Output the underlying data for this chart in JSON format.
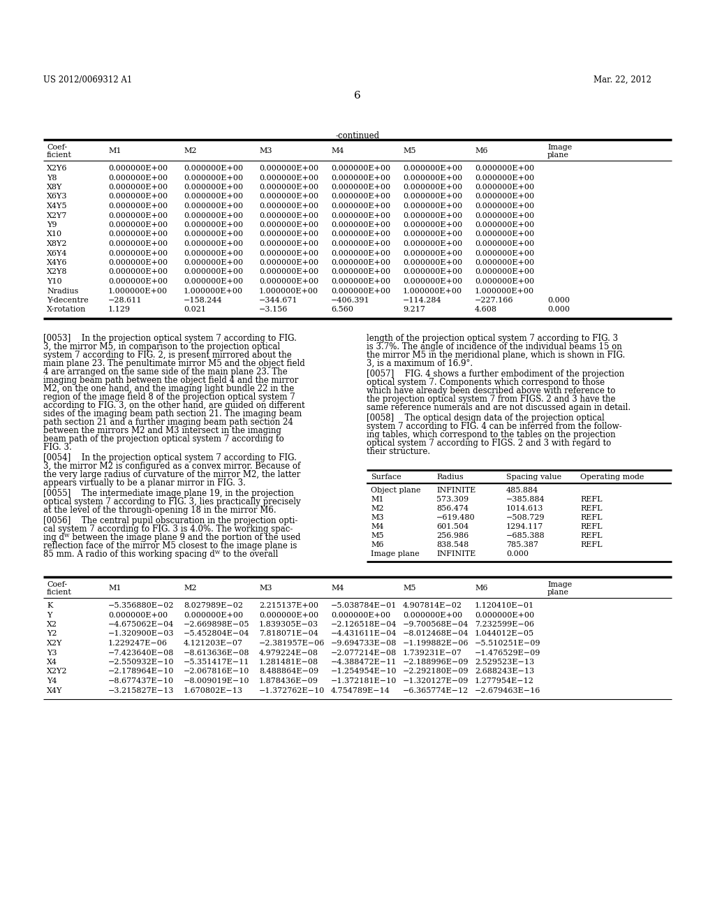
{
  "page_header_left": "US 2012/0069312 A1",
  "page_header_right": "Mar. 22, 2012",
  "page_number": "6",
  "continued_label": "-continued",
  "table1_rows": [
    [
      "X2Y6",
      "0.000000E+00",
      "0.000000E+00",
      "0.000000E+00",
      "0.000000E+00",
      "0.000000E+00",
      "0.000000E+00",
      ""
    ],
    [
      "Y8",
      "0.000000E+00",
      "0.000000E+00",
      "0.000000E+00",
      "0.000000E+00",
      "0.000000E+00",
      "0.000000E+00",
      ""
    ],
    [
      "X8Y",
      "0.000000E+00",
      "0.000000E+00",
      "0.000000E+00",
      "0.000000E+00",
      "0.000000E+00",
      "0.000000E+00",
      ""
    ],
    [
      "X6Y3",
      "0.000000E+00",
      "0.000000E+00",
      "0.000000E+00",
      "0.000000E+00",
      "0.000000E+00",
      "0.000000E+00",
      ""
    ],
    [
      "X4Y5",
      "0.000000E+00",
      "0.000000E+00",
      "0.000000E+00",
      "0.000000E+00",
      "0.000000E+00",
      "0.000000E+00",
      ""
    ],
    [
      "X2Y7",
      "0.000000E+00",
      "0.000000E+00",
      "0.000000E+00",
      "0.000000E+00",
      "0.000000E+00",
      "0.000000E+00",
      ""
    ],
    [
      "Y9",
      "0.000000E+00",
      "0.000000E+00",
      "0.000000E+00",
      "0.000000E+00",
      "0.000000E+00",
      "0.000000E+00",
      ""
    ],
    [
      "X10",
      "0.000000E+00",
      "0.000000E+00",
      "0.000000E+00",
      "0.000000E+00",
      "0.000000E+00",
      "0.000000E+00",
      ""
    ],
    [
      "X8Y2",
      "0.000000E+00",
      "0.000000E+00",
      "0.000000E+00",
      "0.000000E+00",
      "0.000000E+00",
      "0.000000E+00",
      ""
    ],
    [
      "X6Y4",
      "0.000000E+00",
      "0.000000E+00",
      "0.000000E+00",
      "0.000000E+00",
      "0.000000E+00",
      "0.000000E+00",
      ""
    ],
    [
      "X4Y6",
      "0.000000E+00",
      "0.000000E+00",
      "0.000000E+00",
      "0.000000E+00",
      "0.000000E+00",
      "0.000000E+00",
      ""
    ],
    [
      "X2Y8",
      "0.000000E+00",
      "0.000000E+00",
      "0.000000E+00",
      "0.000000E+00",
      "0.000000E+00",
      "0.000000E+00",
      ""
    ],
    [
      "Y10",
      "0.000000E+00",
      "0.000000E+00",
      "0.000000E+00",
      "0.000000E+00",
      "0.000000E+00",
      "0.000000E+00",
      ""
    ],
    [
      "Nradius",
      "1.000000E+00",
      "1.000000E+00",
      "1.000000E+00",
      "0.000000E+00",
      "1.000000E+00",
      "1.000000E+00",
      ""
    ],
    [
      "Y-decentre",
      "−28.611",
      "−158.244",
      "−344.671",
      "−406.391",
      "−114.284",
      "−227.166",
      "0.000"
    ],
    [
      "X-rotation",
      "1.129",
      "0.021",
      "−3.156",
      "6.560",
      "9.217",
      "4.608",
      "0.000"
    ]
  ],
  "table2_headers": [
    "Surface",
    "Radius",
    "Spacing value",
    "Operating mode"
  ],
  "table2_rows": [
    [
      "Object plane",
      "INFINITE",
      "485.884",
      ""
    ],
    [
      "M1",
      "573.309",
      "−385.884",
      "REFL"
    ],
    [
      "M2",
      "856.474",
      "1014.613",
      "REFL"
    ],
    [
      "M3",
      "−619.480",
      "−508.729",
      "REFL"
    ],
    [
      "M4",
      "601.504",
      "1294.117",
      "REFL"
    ],
    [
      "M5",
      "256.986",
      "−685.388",
      "REFL"
    ],
    [
      "M6",
      "838.548",
      "785.387",
      "REFL"
    ],
    [
      "Image plane",
      "INFINITE",
      "0.000",
      ""
    ]
  ],
  "table3_rows": [
    [
      "K",
      "−5.356880E−02",
      "8.027989E−02",
      "2.215137E+00",
      "−5.038784E−01",
      "4.907814E−02",
      "1.120410E−01"
    ],
    [
      "Y",
      "0.000000E+00",
      "0.000000E+00",
      "0.000000E+00",
      "0.000000E+00",
      "0.000000E+00",
      "0.000000E+00"
    ],
    [
      "X2",
      "−4.675062E−04",
      "−2.669898E−05",
      "1.839305E−03",
      "−2.126518E−04",
      "−9.700568E−04",
      "7.232599E−06"
    ],
    [
      "Y2",
      "−1.320900E−03",
      "−5.452804E−04",
      "7.818071E−04",
      "−4.431611E−04",
      "−8.012468E−04",
      "1.044012E−05"
    ],
    [
      "X2Y",
      "1.229247E−06",
      "4.121203E−07",
      "−2.381957E−06",
      "−9.694733E−08",
      "−1.199882E−06",
      "−5.510251E−09"
    ],
    [
      "Y3",
      "−7.423640E−08",
      "−8.613636E−08",
      "4.979224E−08",
      "−2.077214E−08",
      "1.739231E−07",
      "−1.476529E−09"
    ],
    [
      "X4",
      "−2.550932E−10",
      "−5.351417E−11",
      "1.281481E−08",
      "−4.388472E−11",
      "−2.188996E−09",
      "2.529523E−13"
    ],
    [
      "X2Y2",
      "−2.178964E−10",
      "−2.067816E−10",
      "8.488864E−09",
      "−1.254954E−10",
      "−2.292180E−09",
      "2.688243E−13"
    ],
    [
      "Y4",
      "−8.677437E−10",
      "−8.009019E−10",
      "1.878436E−09",
      "−1.372181E−10",
      "−1.320127E−09",
      "1.277954E−12"
    ],
    [
      "X4Y",
      "−3.215827E−13",
      "1.670802E−13",
      "−1.372762E−10",
      "4.754789E−14",
      "−6.365774E−12",
      "−2.679463E−16"
    ]
  ],
  "col1_paras": [
    "[0053]  In the projection optical system 7 according to FIG.\n3, the mirror M5, in comparison to the projection optical\nsystem 7 according to FIG. 2, is present mirrored about the\nmain plane 23. The penultimate mirror M5 and the object field\n4 are arranged on the same side of the main plane 23. The\nimaging beam path between the object field 4 and the mirror\nM2, on the one hand, and the imaging light bundle 22 in the\nregion of the image field 8 of the projection optical system 7\naccording to FIG. 3, on the other hand, are guided on different\nsides of the imaging beam path section 21. The imaging beam\npath section 21 and a further imaging beam path section 24\nbetween the mirrors M2 and M3 intersect in the imaging\nbeam path of the projection optical system 7 according to\nFIG. 3.",
    "[0054]  In the projection optical system 7 according to FIG.\n3, the mirror M2 is configured as a convex mirror. Because of\nthe very large radius of curvature of the mirror M2, the latter\nappears virtually to be a planar mirror in FIG. 3.",
    "[0055]  The intermediate image plane 19, in the projection\noptical system 7 according to FIG. 3, lies practically precisely\nat the level of the through-opening 18 in the mirror M6.",
    "[0056]  The central pupil obscuration in the projection opti-\ncal system 7 according to FIG. 3 is 4.0%. The working spac-\ning dᵂ between the image plane 9 and the portion of the used\nreflection face of the mirror M5 closest to the image plane is\n85 mm. A radio of this working spacing dᵂ to the overall"
  ],
  "col2_paras": [
    "length of the projection optical system 7 according to FIG. 3\nis 3.7%. The angle of incidence of the individual beams 15 on\nthe mirror M5 in the meridional plane, which is shown in FIG.\n3, is a maximum of 16.9°.",
    "[0057]  FIG. 4 shows a further embodiment of the projection\noptical system 7. Components which correspond to those\nwhich have already been described above with reference to\nthe projection optical system 7 from FIGS. 2 and 3 have the\nsame reference numerals and are not discussed again in detail.",
    "[0058]  The optical design data of the projection optical\nsystem 7 according to FIG. 4 can be inferred from the follow-\ning tables, which correspond to the tables on the projection\noptical system 7 according to FIGS. 2 and 3 with regard to\ntheir structure."
  ]
}
